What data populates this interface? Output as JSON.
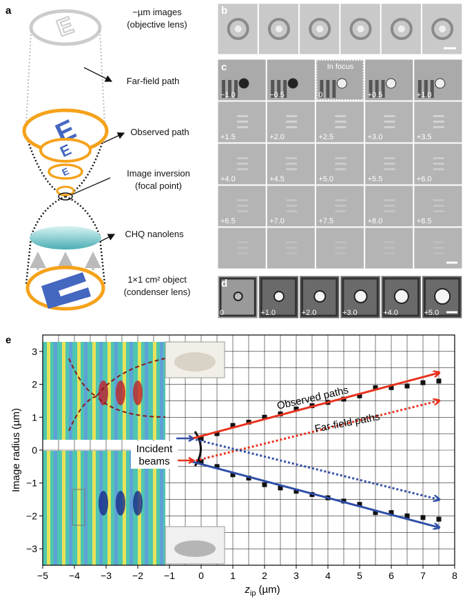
{
  "panel_a": {
    "letter": "a",
    "labels": {
      "images": [
        "~µm images",
        "(objective lens)"
      ],
      "far_field": "Far-field path",
      "observed": "Observed path",
      "inversion": [
        "Image inversion",
        "(focal point)"
      ],
      "nanolens": "CHQ nanolens",
      "object": [
        "1×1 cm² object",
        "(condenser lens)"
      ]
    }
  },
  "panel_b": {
    "letter": "b"
  },
  "panel_c": {
    "letter": "c",
    "in_focus": "In focus",
    "frame_labels": [
      "−1.0",
      "−0.5",
      "0",
      "+0.5",
      "+1.0",
      "+1.5",
      "+2.0",
      "+2.5",
      "+3.0",
      "+3.5",
      "+4.0",
      "+4.5",
      "+5.0",
      "+5.5",
      "+6.0",
      "+6.5",
      "+7.0",
      "+7.5",
      "+8.0",
      "+8.5"
    ]
  },
  "panel_d": {
    "letter": "d",
    "frame_labels": [
      "0",
      "+1.0",
      "+2.0",
      "+3.0",
      "+4.0",
      "+5.0"
    ]
  },
  "chart_data": {
    "type": "scatter",
    "letter": "e",
    "ylabel": "Image radius (µm)",
    "xlabel": {
      "symbol": "z",
      "subscript": "ip",
      "unit": "(µm)"
    },
    "xlim": [
      -5,
      8
    ],
    "ylim": [
      -3.5,
      3.5
    ],
    "xticks": [
      {
        "value": -5,
        "label": "−5"
      },
      {
        "value": -4,
        "label": "−4"
      },
      {
        "value": -3,
        "label": "−3"
      },
      {
        "value": -2,
        "label": "−2"
      },
      {
        "value": -1,
        "label": "−1"
      },
      0,
      1,
      2,
      3,
      4,
      5,
      6,
      7,
      8
    ],
    "yticks": [
      {
        "value": -3,
        "label": "−3"
      },
      {
        "value": -2,
        "label": "−2"
      },
      {
        "value": -1,
        "label": "−1"
      },
      0,
      1,
      2,
      3
    ],
    "grid": true,
    "series": [
      {
        "marker": "square",
        "color": "#111111",
        "x": [
          0,
          0.5,
          1,
          1.5,
          2,
          2.5,
          3,
          3.5,
          4,
          4.5,
          5,
          5.5,
          6,
          6.5,
          7,
          7.5
        ],
        "values": [
          0.35,
          0.5,
          0.75,
          0.85,
          1.0,
          1.1,
          1.25,
          1.35,
          1.45,
          1.55,
          1.65,
          1.9,
          1.9,
          1.95,
          2.05,
          2.1
        ]
      },
      {
        "marker": "square",
        "color": "#111111",
        "x": [
          0,
          0.5,
          1,
          1.5,
          2,
          2.5,
          3,
          3.5,
          4,
          4.5,
          5,
          5.5,
          6,
          6.5,
          7,
          7.5
        ],
        "values": [
          -0.35,
          -0.5,
          -0.75,
          -0.85,
          -1.05,
          -1.15,
          -1.25,
          -1.35,
          -1.45,
          -1.55,
          -1.65,
          -1.9,
          -1.9,
          -2.0,
          -2.05,
          -2.1
        ]
      },
      {
        "marker": "line",
        "style": "solid",
        "arrow": true,
        "color": "#e8321e",
        "x": [
          -0.3,
          7.5
        ],
        "values": [
          0.35,
          2.35
        ]
      },
      {
        "marker": "line",
        "style": "solid",
        "arrow": true,
        "color": "#2f4fa8",
        "x": [
          -0.3,
          7.5
        ],
        "values": [
          -0.35,
          -2.35
        ]
      },
      {
        "marker": "line",
        "style": "dotted",
        "arrow": true,
        "color": "#e8321e",
        "x": [
          -0.3,
          7.5
        ],
        "values": [
          -0.35,
          1.5
        ]
      },
      {
        "marker": "line",
        "style": "dotted",
        "arrow": true,
        "color": "#2f4fa8",
        "x": [
          -0.3,
          7.5
        ],
        "values": [
          0.35,
          -1.5
        ]
      }
    ],
    "annotations": {
      "observed": "Observed paths",
      "far_field": "Far-field paths",
      "incident": [
        "Incident",
        "beams"
      ]
    }
  }
}
